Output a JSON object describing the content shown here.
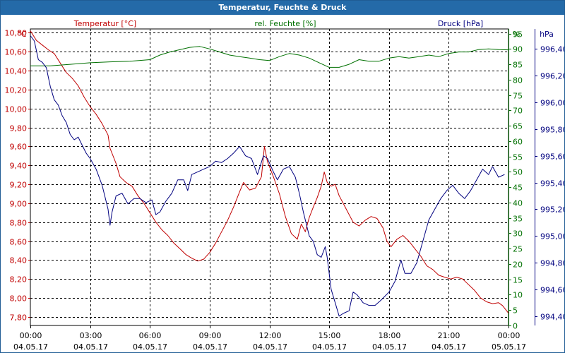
{
  "window": {
    "title": "Temperatur, Feuchte & Druck"
  },
  "colors": {
    "temperature": "#c00000",
    "humidity": "#007000",
    "pressure": "#00007f",
    "title_bar": "#246aa8",
    "grid": "#000000"
  },
  "chart_data": {
    "type": "line",
    "title": "Temperatur, Feuchte & Druck",
    "grid": true,
    "x": {
      "range": [
        "04.05.17 00:00",
        "05.05.17 00:00"
      ],
      "tick_labels": [
        {
          "time": "00:00",
          "date": "04.05.17"
        },
        {
          "time": "03:00",
          "date": "04.05.17"
        },
        {
          "time": "06:00",
          "date": "04.05.17"
        },
        {
          "time": "09:00",
          "date": "04.05.17"
        },
        {
          "time": "12:00",
          "date": "04.05.17"
        },
        {
          "time": "15:00",
          "date": "04.05.17"
        },
        {
          "time": "18:00",
          "date": "04.05.17"
        },
        {
          "time": "21:00",
          "date": "04.05.17"
        },
        {
          "time": "00:00",
          "date": "05.05.17"
        }
      ]
    },
    "axes": {
      "temperature": {
        "unit": "°C",
        "label": "Temperatur [°C]",
        "range": [
          7.71,
          10.84
        ],
        "ticks": [
          "7,80",
          "8,00",
          "8,20",
          "8,40",
          "8,60",
          "8,80",
          "9,00",
          "9,20",
          "9,40",
          "9,60",
          "9,80",
          "10,00",
          "10,20",
          "10,40",
          "10,60",
          "10,80"
        ],
        "tick_values": [
          7.8,
          8.0,
          8.2,
          8.4,
          8.6,
          8.8,
          9.0,
          9.2,
          9.4,
          9.6,
          9.8,
          10.0,
          10.2,
          10.4,
          10.6,
          10.8
        ]
      },
      "humidity": {
        "unit": "%",
        "label": "rel. Feuchte [%]",
        "range": [
          0,
          96.5
        ],
        "ticks": [
          "0",
          "5",
          "10",
          "15",
          "20",
          "25",
          "30",
          "35",
          "40",
          "45",
          "50",
          "55",
          "60",
          "65",
          "70",
          "75",
          "80",
          "85",
          "90",
          "95"
        ],
        "tick_values": [
          0,
          5,
          10,
          15,
          20,
          25,
          30,
          35,
          40,
          45,
          50,
          55,
          60,
          65,
          70,
          75,
          80,
          85,
          90,
          95
        ]
      },
      "pressure": {
        "unit": "hPa",
        "label": "Druck [hPa]",
        "range": [
          994.33,
          996.55
        ],
        "ticks": [
          "994,40",
          "994,60",
          "994,80",
          "995,00",
          "995,20",
          "995,40",
          "995,60",
          "995,80",
          "996,00",
          "996,20",
          "996,40"
        ],
        "tick_values": [
          994.4,
          994.6,
          994.8,
          995.0,
          995.2,
          995.4,
          995.6,
          995.8,
          996.0,
          996.2,
          996.4
        ]
      }
    },
    "series": [
      {
        "name": "Temperatur [°C]",
        "axis": "temperature",
        "color": "#c00000",
        "points": [
          [
            0,
            10.82
          ],
          [
            0.3,
            10.72
          ],
          [
            0.6,
            10.67
          ],
          [
            0.9,
            10.62
          ],
          [
            1.2,
            10.58
          ],
          [
            1.5,
            10.48
          ],
          [
            1.8,
            10.38
          ],
          [
            2.1,
            10.32
          ],
          [
            2.4,
            10.24
          ],
          [
            2.7,
            10.12
          ],
          [
            3.0,
            10.02
          ],
          [
            3.3,
            9.94
          ],
          [
            3.6,
            9.84
          ],
          [
            3.9,
            9.72
          ],
          [
            4.0,
            9.58
          ],
          [
            4.3,
            9.42
          ],
          [
            4.5,
            9.28
          ],
          [
            4.8,
            9.22
          ],
          [
            5.1,
            9.18
          ],
          [
            5.4,
            9.08
          ],
          [
            5.7,
            9.0
          ],
          [
            6.0,
            8.9
          ],
          [
            6.3,
            8.8
          ],
          [
            6.6,
            8.72
          ],
          [
            6.9,
            8.66
          ],
          [
            7.2,
            8.58
          ],
          [
            7.5,
            8.52
          ],
          [
            7.8,
            8.46
          ],
          [
            8.1,
            8.42
          ],
          [
            8.4,
            8.39
          ],
          [
            8.7,
            8.41
          ],
          [
            9.0,
            8.48
          ],
          [
            9.3,
            8.58
          ],
          [
            9.6,
            8.7
          ],
          [
            9.9,
            8.82
          ],
          [
            10.2,
            8.96
          ],
          [
            10.5,
            9.12
          ],
          [
            10.7,
            9.22
          ],
          [
            11.0,
            9.14
          ],
          [
            11.3,
            9.16
          ],
          [
            11.6,
            9.28
          ],
          [
            11.75,
            9.6
          ],
          [
            11.9,
            9.44
          ],
          [
            12.2,
            9.28
          ],
          [
            12.5,
            9.1
          ],
          [
            12.8,
            8.86
          ],
          [
            13.1,
            8.68
          ],
          [
            13.4,
            8.62
          ],
          [
            13.6,
            8.78
          ],
          [
            13.8,
            8.7
          ],
          [
            14.0,
            8.85
          ],
          [
            14.2,
            8.96
          ],
          [
            14.4,
            9.06
          ],
          [
            14.6,
            9.18
          ],
          [
            14.75,
            9.33
          ],
          [
            14.9,
            9.22
          ],
          [
            15.1,
            9.18
          ],
          [
            15.3,
            9.2
          ],
          [
            15.5,
            9.08
          ],
          [
            15.7,
            9.0
          ],
          [
            15.9,
            8.92
          ],
          [
            16.2,
            8.8
          ],
          [
            16.5,
            8.76
          ],
          [
            16.8,
            8.82
          ],
          [
            17.1,
            8.86
          ],
          [
            17.4,
            8.84
          ],
          [
            17.7,
            8.74
          ],
          [
            17.9,
            8.6
          ],
          [
            18.1,
            8.54
          ],
          [
            18.4,
            8.62
          ],
          [
            18.7,
            8.66
          ],
          [
            19.0,
            8.6
          ],
          [
            19.3,
            8.52
          ],
          [
            19.6,
            8.44
          ],
          [
            19.9,
            8.34
          ],
          [
            20.2,
            8.3
          ],
          [
            20.5,
            8.24
          ],
          [
            20.8,
            8.22
          ],
          [
            21.1,
            8.2
          ],
          [
            21.4,
            8.22
          ],
          [
            21.7,
            8.2
          ],
          [
            22.0,
            8.14
          ],
          [
            22.3,
            8.08
          ],
          [
            22.6,
            8.0
          ],
          [
            22.9,
            7.96
          ],
          [
            23.2,
            7.94
          ],
          [
            23.5,
            7.95
          ],
          [
            23.7,
            7.92
          ],
          [
            24.0,
            7.84
          ]
        ]
      },
      {
        "name": "rel. Feuchte [%]",
        "axis": "humidity",
        "color": "#007000",
        "points": [
          [
            0,
            84.5
          ],
          [
            1.0,
            84.5
          ],
          [
            2.0,
            85.0
          ],
          [
            3.0,
            85.5
          ],
          [
            4.0,
            85.8
          ],
          [
            5.0,
            86.0
          ],
          [
            6.0,
            86.5
          ],
          [
            6.5,
            88.0
          ],
          [
            7.0,
            89.0
          ],
          [
            8.0,
            90.5
          ],
          [
            8.5,
            90.8
          ],
          [
            9.0,
            90.0
          ],
          [
            9.5,
            89.0
          ],
          [
            10.0,
            88.0
          ],
          [
            10.5,
            87.5
          ],
          [
            11.0,
            87.0
          ],
          [
            11.5,
            86.5
          ],
          [
            12.0,
            86.2
          ],
          [
            12.5,
            87.5
          ],
          [
            13.0,
            88.5
          ],
          [
            13.5,
            88.0
          ],
          [
            14.0,
            87.0
          ],
          [
            14.5,
            85.5
          ],
          [
            15.0,
            84.0
          ],
          [
            15.5,
            84.0
          ],
          [
            16.0,
            85.0
          ],
          [
            16.5,
            86.5
          ],
          [
            17.0,
            86.0
          ],
          [
            17.5,
            86.0
          ],
          [
            18.0,
            87.0
          ],
          [
            18.5,
            87.5
          ],
          [
            19.0,
            87.0
          ],
          [
            19.5,
            87.5
          ],
          [
            20.0,
            88.0
          ],
          [
            20.5,
            87.5
          ],
          [
            21.0,
            88.5
          ],
          [
            21.5,
            89.0
          ],
          [
            22.0,
            89.0
          ],
          [
            22.5,
            89.8
          ],
          [
            23.0,
            90.0
          ],
          [
            23.5,
            89.8
          ],
          [
            24.0,
            89.7
          ]
        ]
      },
      {
        "name": "Druck [hPa]",
        "axis": "pressure",
        "color": "#00007f",
        "points": [
          [
            0,
            996.5
          ],
          [
            0.2,
            996.46
          ],
          [
            0.4,
            996.32
          ],
          [
            0.6,
            996.3
          ],
          [
            0.8,
            996.26
          ],
          [
            1.0,
            996.12
          ],
          [
            1.2,
            996.02
          ],
          [
            1.4,
            995.98
          ],
          [
            1.6,
            995.9
          ],
          [
            1.8,
            995.85
          ],
          [
            2.0,
            995.76
          ],
          [
            2.2,
            995.72
          ],
          [
            2.4,
            995.74
          ],
          [
            2.6,
            995.68
          ],
          [
            2.8,
            995.62
          ],
          [
            3.0,
            995.58
          ],
          [
            3.3,
            995.5
          ],
          [
            3.6,
            995.38
          ],
          [
            3.9,
            995.2
          ],
          [
            4.0,
            995.08
          ],
          [
            4.1,
            995.18
          ],
          [
            4.3,
            995.3
          ],
          [
            4.6,
            995.32
          ],
          [
            4.9,
            995.24
          ],
          [
            5.2,
            995.28
          ],
          [
            5.5,
            995.28
          ],
          [
            5.8,
            995.25
          ],
          [
            6.1,
            995.27
          ],
          [
            6.3,
            995.16
          ],
          [
            6.5,
            995.18
          ],
          [
            6.8,
            995.26
          ],
          [
            7.1,
            995.32
          ],
          [
            7.4,
            995.42
          ],
          [
            7.7,
            995.42
          ],
          [
            7.9,
            995.34
          ],
          [
            8.1,
            995.46
          ],
          [
            8.4,
            995.48
          ],
          [
            8.7,
            995.5
          ],
          [
            9.0,
            995.52
          ],
          [
            9.3,
            995.56
          ],
          [
            9.6,
            995.55
          ],
          [
            9.9,
            995.58
          ],
          [
            10.2,
            995.62
          ],
          [
            10.5,
            995.67
          ],
          [
            10.8,
            995.6
          ],
          [
            11.1,
            995.58
          ],
          [
            11.4,
            995.46
          ],
          [
            11.7,
            995.6
          ],
          [
            11.9,
            995.58
          ],
          [
            12.2,
            995.48
          ],
          [
            12.4,
            995.42
          ],
          [
            12.7,
            995.5
          ],
          [
            13.0,
            995.52
          ],
          [
            13.3,
            995.44
          ],
          [
            13.5,
            995.32
          ],
          [
            13.7,
            995.18
          ],
          [
            14.0,
            995.0
          ],
          [
            14.2,
            994.96
          ],
          [
            14.4,
            994.86
          ],
          [
            14.6,
            994.84
          ],
          [
            14.8,
            994.92
          ],
          [
            14.9,
            994.84
          ],
          [
            15.1,
            994.6
          ],
          [
            15.3,
            994.5
          ],
          [
            15.5,
            994.4
          ],
          [
            15.7,
            994.42
          ],
          [
            16.0,
            994.44
          ],
          [
            16.2,
            994.58
          ],
          [
            16.4,
            994.56
          ],
          [
            16.7,
            994.5
          ],
          [
            17.0,
            994.48
          ],
          [
            17.3,
            994.48
          ],
          [
            17.6,
            994.52
          ],
          [
            18.0,
            994.58
          ],
          [
            18.3,
            994.66
          ],
          [
            18.6,
            994.82
          ],
          [
            18.8,
            994.72
          ],
          [
            19.1,
            994.72
          ],
          [
            19.4,
            994.8
          ],
          [
            19.7,
            994.96
          ],
          [
            20.0,
            995.12
          ],
          [
            20.3,
            995.2
          ],
          [
            20.6,
            995.28
          ],
          [
            20.9,
            995.34
          ],
          [
            21.2,
            995.38
          ],
          [
            21.5,
            995.32
          ],
          [
            21.8,
            995.28
          ],
          [
            22.1,
            995.34
          ],
          [
            22.4,
            995.42
          ],
          [
            22.7,
            995.5
          ],
          [
            23.0,
            995.46
          ],
          [
            23.2,
            995.52
          ],
          [
            23.5,
            995.44
          ],
          [
            23.8,
            995.46
          ]
        ]
      }
    ]
  }
}
